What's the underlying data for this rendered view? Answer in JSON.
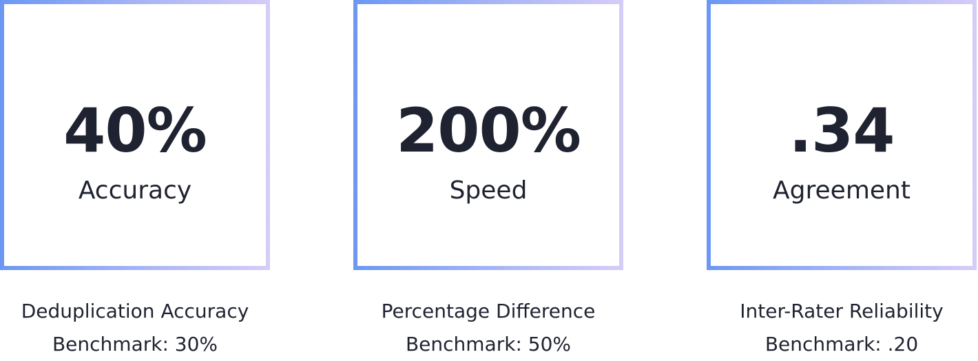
{
  "stats": [
    {
      "value": "40%",
      "metric": "Accuracy",
      "caption": "Deduplication Accuracy",
      "benchmark": "Benchmark: 30%"
    },
    {
      "value": "200%",
      "metric": "Speed",
      "caption": "Percentage Difference",
      "benchmark": "Benchmark: 50%"
    },
    {
      "value": ".34",
      "metric": "Agreement",
      "caption": "Inter-Rater Reliability",
      "benchmark": "Benchmark: .20"
    }
  ],
  "colors": {
    "text": "#1f2230",
    "border_start": "#6b97f3",
    "border_end": "#d6ccf8",
    "background": "#ffffff"
  }
}
